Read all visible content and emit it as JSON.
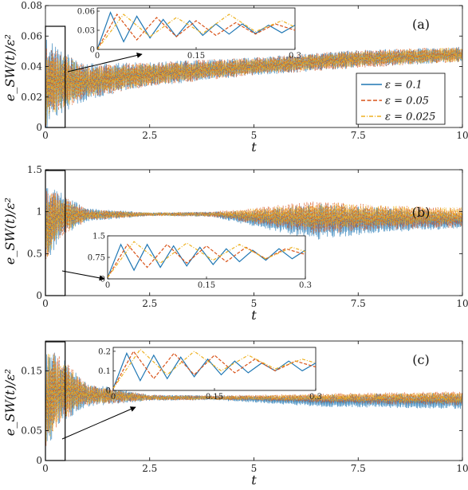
{
  "colors": {
    "eps_0_1": "#1f77b4",
    "eps_0_05": "#d95319",
    "eps_0_025": "#edb120"
  },
  "chart_data": [
    {
      "type": "line",
      "panel_label": "(a)",
      "xlabel": "t",
      "ylabel": "e_SW(t)/ε²",
      "xlim": [
        0,
        10
      ],
      "ylim": [
        0,
        0.08
      ],
      "xticks": [
        "0",
        "2.5",
        "5",
        "7.5",
        "10"
      ],
      "yticks": [
        "0",
        "0.02",
        "0.04",
        "0.06",
        "0.08"
      ],
      "legend": {
        "position": "right-middle",
        "entries": [
          "ε = 0.1",
          "ε = 0.05",
          "ε = 0.025"
        ]
      },
      "highlight_box_x": [
        0,
        0.3
      ],
      "series": [
        {
          "name": "ε = 0.1",
          "color": "#1f77b4",
          "envelope": {
            "t": [
              0,
              0.05,
              0.3,
              1,
              2.5,
              5,
              7.5,
              10
            ],
            "mean": [
              0.025,
              0.03,
              0.03,
              0.03,
              0.035,
              0.04,
              0.045,
              0.048
            ],
            "amp": [
              0.035,
              0.028,
              0.022,
              0.012,
              0.008,
              0.006,
              0.006,
              0.005
            ]
          }
        },
        {
          "name": "ε = 0.05",
          "color": "#d95319",
          "envelope": {
            "t": [
              0,
              0.05,
              0.3,
              1,
              2.5,
              5,
              7.5,
              10
            ],
            "mean": [
              0.025,
              0.03,
              0.03,
              0.03,
              0.035,
              0.04,
              0.045,
              0.048
            ],
            "amp": [
              0.03,
              0.025,
              0.02,
              0.011,
              0.008,
              0.006,
              0.006,
              0.005
            ]
          }
        },
        {
          "name": "ε = 0.025",
          "color": "#edb120",
          "envelope": {
            "t": [
              0,
              0.05,
              0.3,
              1,
              2.5,
              5,
              7.5,
              10
            ],
            "mean": [
              0.025,
              0.03,
              0.03,
              0.03,
              0.035,
              0.04,
              0.045,
              0.048
            ],
            "amp": [
              0.028,
              0.024,
              0.019,
              0.01,
              0.007,
              0.005,
              0.005,
              0.005
            ]
          }
        }
      ],
      "inset": {
        "xlim": [
          0,
          0.3
        ],
        "ylim": [
          0,
          0.065
        ],
        "xticks": [
          "0",
          "0.15",
          "0.3"
        ],
        "yticks": [
          "0",
          "0.03",
          "0.06"
        ],
        "series": [
          {
            "name": "ε = 0.1",
            "color": "#1f77b4",
            "t": [
              0,
              0.02,
              0.04,
              0.06,
              0.08,
              0.1,
              0.12,
              0.14,
              0.16,
              0.18,
              0.2,
              0.22,
              0.24,
              0.26,
              0.28,
              0.3
            ],
            "y": [
              0.0,
              0.058,
              0.012,
              0.052,
              0.018,
              0.047,
              0.02,
              0.045,
              0.022,
              0.04,
              0.024,
              0.04,
              0.025,
              0.038,
              0.026,
              0.038
            ]
          },
          {
            "name": "ε = 0.05",
            "color": "#d95319",
            "t": [
              0,
              0.03,
              0.06,
              0.09,
              0.12,
              0.15,
              0.18,
              0.21,
              0.24,
              0.27,
              0.3
            ],
            "y": [
              0.0,
              0.055,
              0.015,
              0.05,
              0.02,
              0.045,
              0.022,
              0.042,
              0.024,
              0.04,
              0.03
            ]
          },
          {
            "name": "ε = 0.025",
            "color": "#edb120",
            "t": [
              0,
              0.04,
              0.08,
              0.12,
              0.16,
              0.2,
              0.24,
              0.28,
              0.3
            ],
            "y": [
              0.0,
              0.055,
              0.02,
              0.05,
              0.025,
              0.055,
              0.028,
              0.045,
              0.035
            ]
          }
        ]
      }
    },
    {
      "type": "line",
      "panel_label": "(b)",
      "xlabel": "t",
      "ylabel": "e_SW(t)/ε²",
      "xlim": [
        0,
        10
      ],
      "ylim": [
        0,
        1.5
      ],
      "xticks": [
        "0",
        "2.5",
        "5",
        "7.5",
        "10"
      ],
      "yticks": [
        "0",
        "0.5",
        "1",
        "1.5"
      ],
      "highlight_box_x": [
        0,
        0.3
      ],
      "series": [
        {
          "name": "ε = 0.1",
          "color": "#1f77b4",
          "envelope": {
            "t": [
              0,
              0.3,
              1,
              2.5,
              4,
              5,
              6.5,
              8,
              10
            ],
            "mean": [
              0.8,
              0.95,
              0.96,
              0.97,
              0.97,
              0.92,
              0.88,
              0.9,
              0.9
            ],
            "amp": [
              0.5,
              0.3,
              0.08,
              0.02,
              0.03,
              0.1,
              0.22,
              0.15,
              0.1
            ]
          }
        },
        {
          "name": "ε = 0.05",
          "color": "#d95319",
          "envelope": {
            "t": [
              0,
              0.3,
              1,
              2.5,
              4,
              5,
              6.5,
              8,
              10
            ],
            "mean": [
              0.8,
              0.95,
              0.96,
              0.97,
              0.97,
              0.95,
              0.93,
              0.93,
              0.93
            ],
            "amp": [
              0.45,
              0.28,
              0.07,
              0.02,
              0.03,
              0.1,
              0.2,
              0.15,
              0.12
            ]
          }
        },
        {
          "name": "ε = 0.025",
          "color": "#edb120",
          "envelope": {
            "t": [
              0,
              0.3,
              1,
              2.5,
              4,
              5,
              6.5,
              8,
              10
            ],
            "mean": [
              0.8,
              0.95,
              0.96,
              0.97,
              0.97,
              0.96,
              0.95,
              0.95,
              0.95
            ],
            "amp": [
              0.42,
              0.26,
              0.06,
              0.02,
              0.02,
              0.08,
              0.16,
              0.13,
              0.1
            ]
          }
        }
      ],
      "inset": {
        "xlim": [
          0,
          0.3
        ],
        "ylim": [
          0,
          1.5
        ],
        "xticks": [
          "0",
          "0.15",
          "0.3"
        ],
        "yticks": [
          "0",
          "0.75",
          "1.5"
        ],
        "series": [
          {
            "name": "ε = 0.1",
            "color": "#1f77b4",
            "t": [
              0,
              0.02,
              0.04,
              0.06,
              0.08,
              0.1,
              0.12,
              0.14,
              0.16,
              0.18,
              0.2,
              0.22,
              0.24,
              0.26,
              0.28,
              0.3
            ],
            "y": [
              0.05,
              1.2,
              0.3,
              1.2,
              0.4,
              1.15,
              0.45,
              1.1,
              0.5,
              1.05,
              0.6,
              1.0,
              0.65,
              1.05,
              0.7,
              1.0
            ]
          },
          {
            "name": "ε = 0.05",
            "color": "#d95319",
            "t": [
              0,
              0.03,
              0.06,
              0.09,
              0.12,
              0.15,
              0.18,
              0.21,
              0.24,
              0.27,
              0.3
            ],
            "y": [
              0.05,
              1.2,
              0.4,
              1.2,
              0.55,
              1.15,
              0.6,
              1.1,
              0.7,
              1.05,
              0.85
            ]
          },
          {
            "name": "ε = 0.025",
            "color": "#edb120",
            "t": [
              0,
              0.04,
              0.08,
              0.12,
              0.16,
              0.2,
              0.24,
              0.28,
              0.3
            ],
            "y": [
              0.05,
              1.3,
              0.55,
              1.25,
              0.65,
              1.2,
              0.7,
              1.1,
              0.95
            ]
          }
        ]
      }
    },
    {
      "type": "line",
      "panel_label": "(c)",
      "xlabel": "t",
      "ylabel": "e_SW(t)/ε²",
      "xlim": [
        0,
        10
      ],
      "ylim": [
        0,
        0.2
      ],
      "xticks": [
        "0",
        "2.5",
        "5",
        "7.5",
        "10"
      ],
      "yticks": [
        "0",
        "0.05",
        "0.15"
      ],
      "highlight_box_x": [
        0,
        0.3
      ],
      "series": [
        {
          "name": "ε = 0.1",
          "color": "#1f77b4",
          "envelope": {
            "t": [
              0,
              0.3,
              1,
              2.5,
              4,
              5,
              6.5,
              8,
              10
            ],
            "mean": [
              0.1,
              0.12,
              0.11,
              0.105,
              0.105,
              0.103,
              0.1,
              0.1,
              0.1
            ],
            "amp": [
              0.09,
              0.06,
              0.02,
              0.005,
              0.004,
              0.006,
              0.01,
              0.012,
              0.014
            ]
          }
        },
        {
          "name": "ε = 0.05",
          "color": "#d95319",
          "envelope": {
            "t": [
              0,
              0.3,
              1,
              2.5,
              4,
              5,
              6.5,
              8,
              10
            ],
            "mean": [
              0.1,
              0.12,
              0.11,
              0.105,
              0.105,
              0.105,
              0.104,
              0.104,
              0.104
            ],
            "amp": [
              0.085,
              0.06,
              0.018,
              0.005,
              0.004,
              0.005,
              0.008,
              0.01,
              0.012
            ]
          }
        },
        {
          "name": "ε = 0.025",
          "color": "#edb120",
          "envelope": {
            "t": [
              0,
              0.3,
              1,
              2.5,
              4,
              5,
              6.5,
              8,
              10
            ],
            "mean": [
              0.1,
              0.12,
              0.11,
              0.105,
              0.105,
              0.105,
              0.105,
              0.105,
              0.105
            ],
            "amp": [
              0.08,
              0.055,
              0.016,
              0.004,
              0.003,
              0.004,
              0.006,
              0.008,
              0.01
            ]
          }
        }
      ],
      "inset": {
        "xlim": [
          0,
          0.3
        ],
        "ylim": [
          0,
          0.22
        ],
        "xticks": [
          "0",
          "0.15",
          "0.3"
        ],
        "yticks": [
          "0",
          "0.1",
          "0.2"
        ],
        "series": [
          {
            "name": "ε = 0.1",
            "color": "#1f77b4",
            "t": [
              0,
              0.02,
              0.04,
              0.06,
              0.08,
              0.1,
              0.12,
              0.14,
              0.16,
              0.18,
              0.2,
              0.22,
              0.24,
              0.26,
              0.28,
              0.3
            ],
            "y": [
              0.01,
              0.19,
              0.05,
              0.18,
              0.06,
              0.17,
              0.07,
              0.16,
              0.08,
              0.15,
              0.09,
              0.14,
              0.1,
              0.15,
              0.1,
              0.14
            ]
          },
          {
            "name": "ε = 0.05",
            "color": "#d95319",
            "t": [
              0,
              0.03,
              0.06,
              0.09,
              0.12,
              0.15,
              0.18,
              0.21,
              0.24,
              0.27,
              0.3
            ],
            "y": [
              0.01,
              0.2,
              0.06,
              0.19,
              0.08,
              0.18,
              0.09,
              0.16,
              0.1,
              0.15,
              0.12
            ]
          },
          {
            "name": "ε = 0.025",
            "color": "#edb120",
            "t": [
              0,
              0.04,
              0.08,
              0.12,
              0.16,
              0.2,
              0.24,
              0.28,
              0.3
            ],
            "y": [
              0.01,
              0.21,
              0.08,
              0.2,
              0.1,
              0.18,
              0.11,
              0.16,
              0.14
            ]
          }
        ]
      }
    }
  ]
}
